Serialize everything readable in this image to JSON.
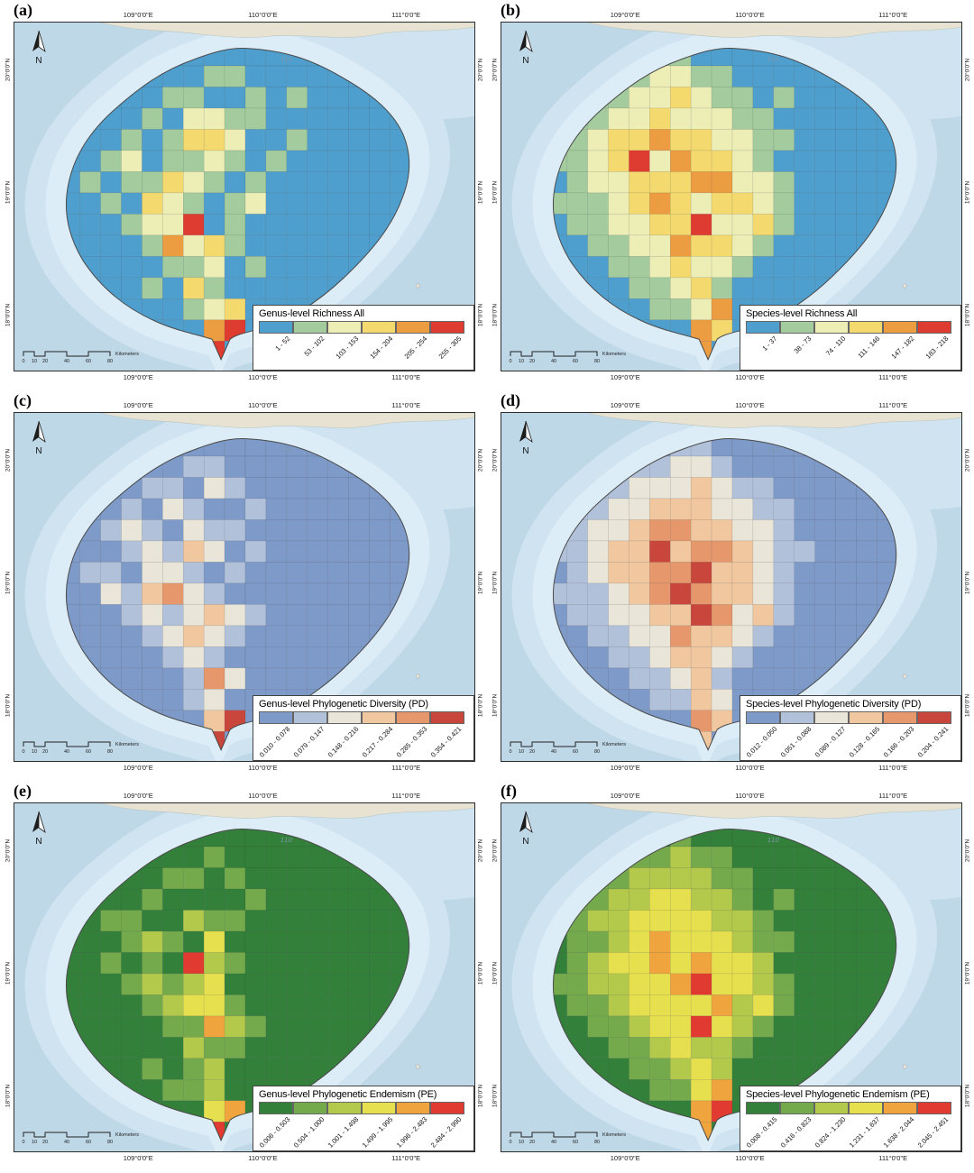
{
  "figure": {
    "shared": {
      "north_label": "N",
      "map_note": "110",
      "scale": {
        "ticks": [
          "0",
          "10",
          "20",
          "40",
          "60",
          "80"
        ],
        "unit": "Kilometers"
      },
      "coords": {
        "top": [
          "109°0'0\"E",
          "110°0'0\"E",
          "111°0'0\"E"
        ],
        "bottom": [
          "109°0'0\"E",
          "110°0'0\"E",
          "111°0'0\"E"
        ],
        "left": [
          "20°0'0\"N",
          "19°0'0\"N",
          "18°0'0\"N"
        ],
        "right": [
          "20°0'0\"N",
          "19°0'0\"N",
          "18°0'0\"N"
        ]
      },
      "sea": {
        "base": "#bfd8e8",
        "shelf_outer": "#cfe3f0",
        "shelf_inner": "#ddedf7"
      },
      "land_tan": "#e8e2d2",
      "outline": "#4a4a4a"
    },
    "panels": [
      {
        "id": "a",
        "label": "(a)",
        "legend_title": "Genus-level Richness All",
        "classes": [
          "1 - 52",
          "53 - 102",
          "103 - 153",
          "154 - 204",
          "205 - 254",
          "255 - 305"
        ],
        "colors": [
          "#4f9fce",
          "#a3cb9d",
          "#eceeb6",
          "#f4d96e",
          "#ec9c41",
          "#de3b31"
        ],
        "grid": [
          "00000000000000000",
          "00000001100000000",
          "00000110010100000",
          "00001022110000000",
          "00010133200100000",
          "00120112101000000",
          "01011321010000000",
          "00103210120000000",
          "00012250100000000",
          "00001423100000000",
          "00000112010000000",
          "00001031000000000",
          "00000012300000000",
          "00000004500000000",
          "00000005000000000"
        ]
      },
      {
        "id": "b",
        "label": "(b)",
        "legend_title": "Species-level Richness All",
        "classes": [
          "1 - 37",
          "38 - 73",
          "74 - 110",
          "111 - 146",
          "147 - 182",
          "183 - 218"
        ],
        "colors": [
          "#4f9fce",
          "#a3cb9d",
          "#eceeb6",
          "#f4d96e",
          "#ec9c41",
          "#de3b31"
        ],
        "grid": [
          "00000110000000000",
          "00011221100000000",
          "00112232110100000",
          "01122322211000000",
          "01233433221100000",
          "11235243321000000",
          "01223334422100000",
          "11123432332100000",
          "01122335223100000",
          "00112243321000000",
          "00011232210000000",
          "00001123100000000",
          "00000112400000000",
          "00000004300000000",
          "00000004000000000"
        ]
      },
      {
        "id": "c",
        "label": "(c)",
        "legend_title": "Genus-level Phylogenetic Diversity (PD)",
        "classes": [
          "0.010 - 0.078",
          "0.079 - 0.147",
          "0.148 - 0.216",
          "0.217 - 0.284",
          "0.285 - 0.353",
          "0.354 - 0.421"
        ],
        "colors": [
          "#7e9ac8",
          "#b2c1da",
          "#e9e5d8",
          "#f0c79f",
          "#e6986c",
          "#c8463c"
        ],
        "grid": [
          "00000000000000000",
          "00000011000000000",
          "00001102100000000",
          "00010210010000000",
          "00121021100000000",
          "00012132010000000",
          "01102210100000000",
          "00213421000000000",
          "00012123210000000",
          "00001232100000000",
          "00000121000000000",
          "00000014200000000",
          "00000012000000000",
          "00000003500000000",
          "00000005000000000"
        ]
      },
      {
        "id": "d",
        "label": "(d)",
        "legend_title": "Species-level Phylogenetic Diversity (PD)",
        "classes": [
          "0.012 - 0.050",
          "0.051 - 0.088",
          "0.089 - 0.127",
          "0.128 - 0.165",
          "0.166 - 0.203",
          "0.204 - 0.241"
        ],
        "colors": [
          "#7e9ac8",
          "#b2c1da",
          "#e9e5d8",
          "#f0c79f",
          "#e6986c",
          "#c8463c"
        ],
        "grid": [
          "00000011000000000",
          "00011122100000000",
          "00112223211000000",
          "01122333221100000",
          "01223443322100000",
          "11233534432110000",
          "01233445332100000",
          "11123454332100000",
          "01122335423100000",
          "00112243321000000",
          "00011233210000000",
          "00001123100000000",
          "00000113200000000",
          "00000004300000000",
          "00000003000000000"
        ]
      },
      {
        "id": "e",
        "label": "(e)",
        "legend_title": "Genus-level Phylogenetic Endemism (PE)",
        "classes": [
          "0.006 - 0.503",
          "0.504 - 1.000",
          "1.001 - 1.498",
          "1.499 - 1.995",
          "1.996 - 2.483",
          "2.484 - 2.990"
        ],
        "colors": [
          "#33803a",
          "#74aa4c",
          "#b2c94c",
          "#e7e04e",
          "#f0a43d",
          "#e03a31"
        ],
        "grid": [
          "00000000000000000",
          "00000001000000000",
          "00000110100000000",
          "00001000010000000",
          "00110021100000000",
          "00012103000000000",
          "00101052100000000",
          "00012123000000000",
          "00001233100000000",
          "00000114210000000",
          "00000021100000000",
          "00001012000000000",
          "00000112000000000",
          "00000003400000000",
          "00000005000000000"
        ]
      },
      {
        "id": "f",
        "label": "(f)",
        "legend_title": "Species-level Phylogenetic Endemism (PE)",
        "classes": [
          "0.008 - 0.415",
          "0.416 - 0.823",
          "0.824 - 1.230",
          "1.231 - 1.637",
          "1.638 - 2.044",
          "2.045 - 2.451"
        ],
        "colors": [
          "#33803a",
          "#74aa4c",
          "#b2c94c",
          "#e7e04e",
          "#f0a43d",
          "#e03a31"
        ],
        "grid": [
          "00000010000000000",
          "00011121100000000",
          "00112222110000000",
          "01122332210100000",
          "01223333221000000",
          "01123433321100000",
          "01233434332000000",
          "11223345332100000",
          "01123333423100000",
          "00112335321000000",
          "00011232210000000",
          "00001123200000000",
          "00000113400000000",
          "00000004500000000",
          "00000004000000000"
        ]
      }
    ]
  }
}
